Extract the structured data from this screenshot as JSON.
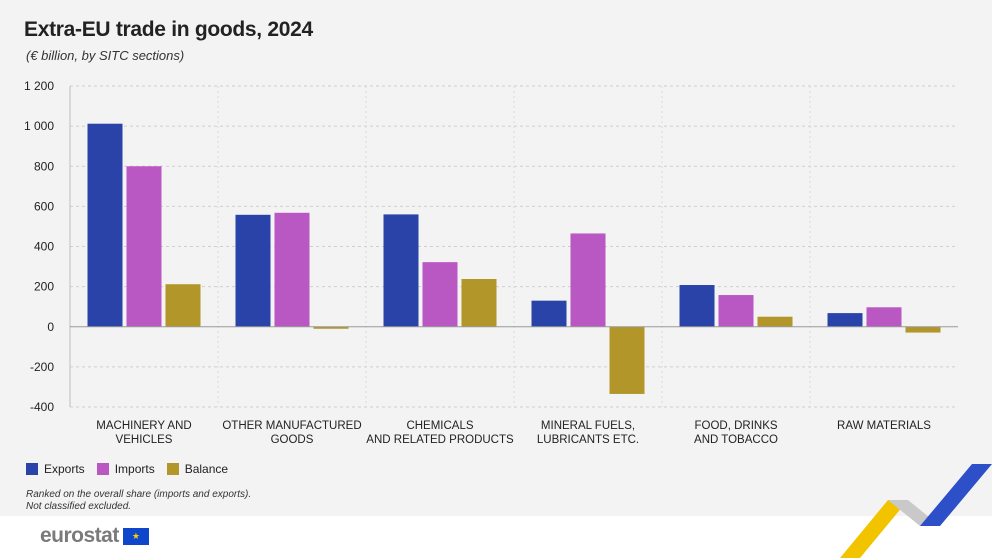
{
  "title": "Extra-EU trade in goods, 2024",
  "subtitle": "(€ billion, by SITC sections)",
  "legend": [
    {
      "name": "Exports",
      "color": "#2a43a8"
    },
    {
      "name": "Imports",
      "color": "#b957c3"
    },
    {
      "name": "Balance",
      "color": "#b3962a"
    }
  ],
  "notes": [
    "Ranked on the overall share (imports and exports).",
    "Not classified excluded."
  ],
  "brand": {
    "name": "eurostat",
    "flag_glyph": "★"
  },
  "chart_data": {
    "type": "bar",
    "categories": [
      [
        "MACHINERY AND",
        "VEHICLES"
      ],
      [
        "OTHER MANUFACTURED",
        "GOODS"
      ],
      [
        "CHEMICALS",
        "AND RELATED PRODUCTS"
      ],
      [
        "MINERAL FUELS,",
        "LUBRICANTS ETC."
      ],
      [
        "FOOD, DRINKS",
        "AND TOBACCO"
      ],
      [
        "RAW MATERIALS"
      ]
    ],
    "series": [
      {
        "name": "Exports",
        "color": "#2a43a8",
        "values": [
          1012,
          558,
          560,
          130,
          208,
          68
        ]
      },
      {
        "name": "Imports",
        "color": "#b957c3",
        "values": [
          800,
          568,
          322,
          465,
          158,
          97
        ]
      },
      {
        "name": "Balance",
        "color": "#b3962a",
        "values": [
          212,
          -10,
          238,
          -335,
          50,
          -29
        ]
      }
    ],
    "yticks": [
      1200,
      1000,
      800,
      600,
      400,
      200,
      0,
      -200,
      -400
    ],
    "ytick_labels": [
      "1 200",
      "1 000",
      "800",
      "600",
      "400",
      "200",
      "0",
      "-200",
      "-400"
    ],
    "ylim": [
      -400,
      1200
    ],
    "xlabel": "",
    "ylabel": "",
    "grid": true,
    "legend_position": "bottom-left"
  }
}
